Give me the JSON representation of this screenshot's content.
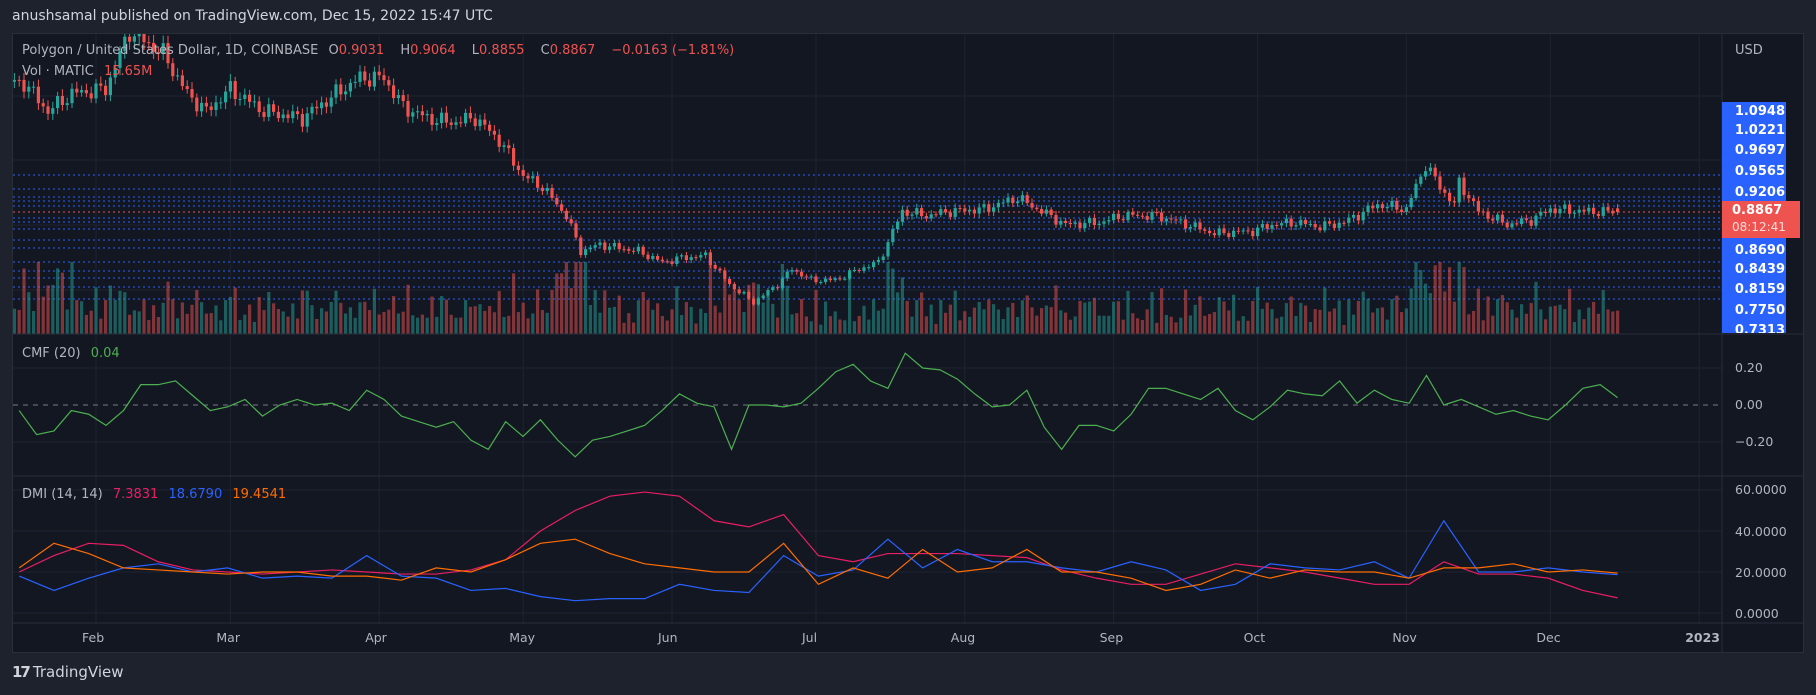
{
  "header": {
    "published": "anushsamal published on TradingView.com, Dec 15, 2022 15:47 UTC"
  },
  "symbol": {
    "title": "Polygon / United States Dollar, 1D, COINBASE",
    "o_label": "O",
    "o": "0.9031",
    "h_label": "H",
    "h": "0.9064",
    "l_label": "L",
    "l": "0.8855",
    "c_label": "C",
    "c": "0.8867",
    "change": "−0.0163 (−1.81%)",
    "vol_label": "Vol · MATIC",
    "vol": "15.65M"
  },
  "price_axis": {
    "currency": "USD",
    "labels": [
      "1.0948",
      "1.0221",
      "0.9697",
      "0.9565",
      "0.9206",
      "0.8690",
      "0.8439",
      "0.8159",
      "0.7750",
      "0.7313"
    ],
    "current_price": "0.8867",
    "countdown": "08:12:41"
  },
  "cmf": {
    "title": "CMF (20)",
    "value": "0.04",
    "axis": [
      "0.20",
      "0.00",
      "−0.20"
    ]
  },
  "dmi": {
    "title": "DMI (14, 14)",
    "adx": "7.3831",
    "plus_di": "18.6790",
    "minus_di": "19.4541",
    "axis": [
      "60.0000",
      "40.0000",
      "20.0000",
      "0.0000"
    ]
  },
  "time_axis": [
    "Feb",
    "Mar",
    "Apr",
    "May",
    "Jun",
    "Jul",
    "Aug",
    "Sep",
    "Oct",
    "Nov",
    "Dec",
    "2023"
  ],
  "footer": {
    "logo_text": "TradingView"
  },
  "colors": {
    "up": "#26a69a",
    "down": "#ef5350",
    "cmf": "#4caf50",
    "adx": "#e91e63",
    "plus_di": "#2962ff",
    "minus_di": "#ff6d00",
    "label_bg": "#2962ff"
  },
  "chart_data": [
    {
      "type": "candlestick",
      "title": "Polygon / United States Dollar, 1D, COINBASE",
      "x_unit": "day of year 2022",
      "approx_close_keyframes": [
        [
          17,
          1.47
        ],
        [
          22,
          1.34
        ],
        [
          27,
          1.42
        ],
        [
          34,
          1.44
        ],
        [
          39,
          1.7
        ],
        [
          46,
          1.6
        ],
        [
          51,
          1.42
        ],
        [
          55,
          1.34
        ],
        [
          60,
          1.44
        ],
        [
          67,
          1.34
        ],
        [
          75,
          1.31
        ],
        [
          82,
          1.42
        ],
        [
          87,
          1.49
        ],
        [
          92,
          1.49
        ],
        [
          96,
          1.36
        ],
        [
          101,
          1.31
        ],
        [
          106,
          1.29
        ],
        [
          111,
          1.31
        ],
        [
          116,
          1.21
        ],
        [
          121,
          1.05
        ],
        [
          125,
          1.0
        ],
        [
          130,
          0.87
        ],
        [
          133,
          0.71
        ],
        [
          137,
          0.74
        ],
        [
          145,
          0.71
        ],
        [
          150,
          0.66
        ],
        [
          154,
          0.68
        ],
        [
          159,
          0.69
        ],
        [
          164,
          0.56
        ],
        [
          169,
          0.48
        ],
        [
          174,
          0.56
        ],
        [
          177,
          0.63
        ],
        [
          181,
          0.58
        ],
        [
          186,
          0.58
        ],
        [
          191,
          0.63
        ],
        [
          195,
          0.66
        ],
        [
          200,
          0.89
        ],
        [
          205,
          0.87
        ],
        [
          210,
          0.89
        ],
        [
          217,
          0.9
        ],
        [
          224,
          0.95
        ],
        [
          229,
          0.89
        ],
        [
          234,
          0.83
        ],
        [
          241,
          0.84
        ],
        [
          246,
          0.87
        ],
        [
          253,
          0.87
        ],
        [
          258,
          0.84
        ],
        [
          265,
          0.79
        ],
        [
          273,
          0.8
        ],
        [
          277,
          0.83
        ],
        [
          282,
          0.84
        ],
        [
          287,
          0.82
        ],
        [
          292,
          0.84
        ],
        [
          299,
          0.92
        ],
        [
          305,
          0.9
        ],
        [
          309,
          1.1
        ],
        [
          312,
          1.0
        ],
        [
          315,
          0.92
        ],
        [
          316,
          1.02
        ],
        [
          320,
          0.89
        ],
        [
          326,
          0.83
        ],
        [
          331,
          0.85
        ],
        [
          335,
          0.9
        ],
        [
          342,
          0.89
        ],
        [
          349,
          0.8867
        ]
      ]
    },
    {
      "type": "line",
      "title": "CMF (20)",
      "x_range_doy": [
        16,
        349
      ],
      "ylim": [
        -0.33,
        0.37
      ],
      "values": [
        -0.03,
        -0.16,
        -0.14,
        -0.03,
        -0.05,
        -0.11,
        -0.03,
        0.11,
        0.11,
        0.13,
        0.05,
        -0.03,
        -0.01,
        0.03,
        -0.06,
        0,
        0.03,
        0,
        0.01,
        -0.03,
        0.08,
        0.03,
        -0.06,
        -0.09,
        -0.12,
        -0.09,
        -0.19,
        -0.24,
        -0.09,
        -0.17,
        -0.08,
        -0.19,
        -0.28,
        -0.19,
        -0.17,
        -0.14,
        -0.11,
        -0.03,
        0.06,
        0.01,
        -0.01,
        -0.24,
        0,
        0,
        -0.01,
        0.01,
        0.09,
        0.18,
        0.22,
        0.13,
        0.09,
        0.28,
        0.2,
        0.19,
        0.14,
        0.06,
        -0.01,
        0,
        0.08,
        -0.12,
        -0.24,
        -0.11,
        -0.11,
        -0.14,
        -0.05,
        0.09,
        0.09,
        0.06,
        0.03,
        0.09,
        -0.03,
        -0.08,
        -0.01,
        0.08,
        0.06,
        0.05,
        0.13,
        0.01,
        0.08,
        0.03,
        0.01,
        0.16,
        0,
        0.03,
        -0.01,
        -0.05,
        -0.03,
        -0.06,
        -0.08,
        0,
        0.09,
        0.11,
        0.04
      ]
    },
    {
      "type": "line",
      "title": "DMI (14, 14)",
      "x_range_doy": [
        16,
        349
      ],
      "ylim": [
        0,
        68
      ],
      "series": [
        {
          "name": "ADX",
          "values": [
            20,
            28,
            34,
            33,
            25,
            21,
            20,
            19,
            20,
            21,
            20,
            19,
            19,
            21,
            26,
            40,
            50,
            57,
            59,
            57,
            45,
            42,
            48,
            28,
            25,
            29,
            29,
            29,
            28,
            27,
            21,
            17,
            14,
            14,
            19,
            24,
            22,
            20,
            17,
            14,
            14,
            25,
            19,
            19,
            17,
            11,
            7.38
          ]
        },
        {
          "name": "+DI",
          "values": [
            18,
            11,
            17,
            22,
            24,
            20,
            22,
            17,
            18,
            17,
            28,
            18,
            17,
            11,
            12,
            8,
            6,
            7,
            7,
            14,
            11,
            10,
            28,
            18,
            21,
            36,
            22,
            31,
            25,
            25,
            22,
            20,
            25,
            21,
            11,
            14,
            24,
            22,
            21,
            25,
            17,
            45,
            20,
            20,
            22,
            20,
            18.68
          ]
        },
        {
          "name": "-DI",
          "values": [
            22,
            34,
            29,
            22,
            21,
            20,
            19,
            20,
            20,
            18,
            18,
            16,
            22,
            20,
            26,
            34,
            36,
            29,
            24,
            22,
            20,
            20,
            34,
            14,
            22,
            17,
            31,
            20,
            22,
            31,
            20,
            20,
            17,
            11,
            14,
            21,
            17,
            21,
            20,
            20,
            17,
            22,
            22,
            24,
            20,
            21,
            19.45
          ]
        }
      ]
    }
  ]
}
